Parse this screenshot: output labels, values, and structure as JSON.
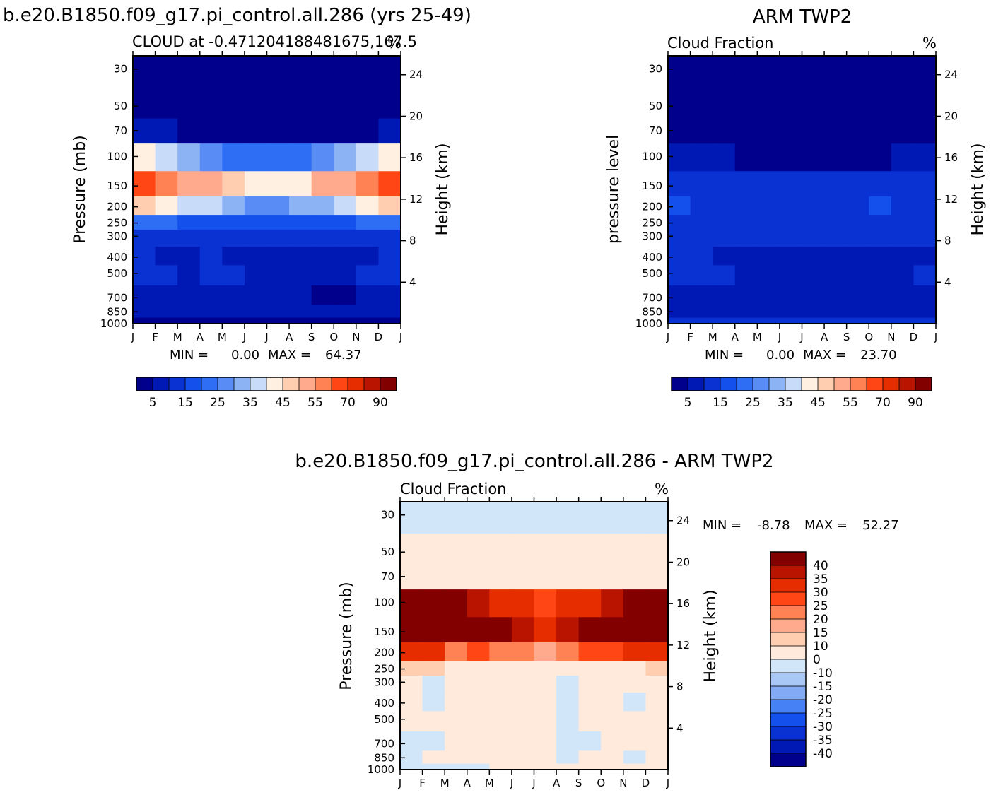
{
  "panel_a": {
    "main_title": "b.e20.B1850.f09_g17.pi_control.all.286 (yrs 25-49)",
    "subtitle": "CLOUD at -0.471204188481675,167.5",
    "units": "%",
    "ylabel": "Pressure (mb)",
    "ylabel_right": "Height (km)",
    "min_label": "MIN =",
    "min_value": "0.00",
    "max_label": "MAX =",
    "max_value": "64.37"
  },
  "panel_b": {
    "main_title": "ARM TWP2",
    "subtitle": "Cloud Fraction",
    "units": "%",
    "ylabel": "pressure level",
    "ylabel_right": "Height (km)",
    "min_label": "MIN =",
    "min_value": "0.00",
    "max_label": "MAX =",
    "max_value": "23.70"
  },
  "panel_c": {
    "main_title": "b.e20.B1850.f09_g17.pi_control.all.286 - ARM TWP2",
    "subtitle": "Cloud Fraction",
    "units": "%",
    "ylabel": "Pressure (mb)",
    "ylabel_right": "Height (km)",
    "min_label": "MIN =",
    "min_value": "-8.78",
    "max_label": "MAX =",
    "max_value": "52.27"
  },
  "colorbar_abs": {
    "colors": [
      "#00008c",
      "#0018b4",
      "#0a32d2",
      "#1450eb",
      "#2d6ef5",
      "#5a8cf5",
      "#8cb4f5",
      "#c8dcfa",
      "#fff0e1",
      "#ffcdaf",
      "#ffaa8c",
      "#ff8255",
      "#ff4614",
      "#e62d00",
      "#b91400",
      "#820000"
    ],
    "labels": [
      "5",
      "15",
      "25",
      "35",
      "45",
      "55",
      "70",
      "90"
    ]
  },
  "colorbar_diff": {
    "colors": [
      "#820000",
      "#b91400",
      "#e62d00",
      "#ff4614",
      "#ff8255",
      "#ffaa8c",
      "#ffcdaf",
      "#ffeadb",
      "#d2e6fa",
      "#aac8f5",
      "#82aaf5",
      "#4682f5",
      "#1450eb",
      "#0a32d2",
      "#0018b4",
      "#00008c"
    ],
    "labels": [
      "40",
      "35",
      "30",
      "25",
      "20",
      "15",
      "10",
      "0",
      "-10",
      "-15",
      "-20",
      "-25",
      "-30",
      "-35",
      "-40"
    ]
  },
  "chart_data": [
    {
      "type": "heatmap",
      "title": "CLOUD at -0.471204188481675,167.5",
      "x": [
        "J",
        "F",
        "M",
        "A",
        "M",
        "J",
        "J",
        "A",
        "S",
        "O",
        "N",
        "D",
        "J"
      ],
      "y_pressure_mb": [
        30,
        50,
        70,
        100,
        150,
        200,
        250,
        300,
        400,
        500,
        700,
        850,
        1000
      ],
      "y_height_km": [
        4,
        8,
        12,
        16,
        20,
        24
      ],
      "months": [
        "J",
        "F",
        "M",
        "A",
        "M",
        "J",
        "J",
        "A",
        "S",
        "O",
        "N",
        "D"
      ],
      "values": {
        "30": [
          2,
          2,
          2,
          2,
          2,
          2,
          2,
          2,
          2,
          2,
          2,
          2
        ],
        "50": [
          2,
          2,
          2,
          2,
          2,
          2,
          2,
          2,
          2,
          2,
          2,
          2
        ],
        "70": [
          6,
          5,
          4,
          3,
          3,
          3,
          3,
          3,
          3,
          3,
          4,
          6
        ],
        "100": [
          40,
          36,
          30,
          26,
          24,
          22,
          22,
          24,
          26,
          30,
          36,
          40
        ],
        "150": [
          62,
          56,
          50,
          54,
          48,
          42,
          40,
          44,
          52,
          54,
          58,
          64
        ],
        "200": [
          46,
          42,
          38,
          36,
          32,
          28,
          26,
          30,
          34,
          38,
          42,
          48
        ],
        "250": [
          22,
          20,
          18,
          17,
          16,
          15,
          15,
          15,
          17,
          18,
          20,
          22
        ],
        "300": [
          14,
          13,
          12,
          12,
          11,
          11,
          11,
          11,
          11,
          12,
          13,
          14
        ],
        "400": [
          10,
          9,
          9,
          10,
          8,
          9,
          7,
          5,
          6,
          7,
          9,
          10
        ],
        "500": [
          12,
          11,
          9,
          10,
          10,
          9,
          8,
          7,
          7,
          8,
          10,
          12
        ],
        "700": [
          8,
          7,
          6,
          6,
          7,
          7,
          6,
          5,
          3,
          4,
          6,
          8
        ],
        "850": [
          7,
          7,
          7,
          6,
          6,
          6,
          6,
          6,
          5,
          6,
          6,
          7
        ],
        "1000": [
          4,
          4,
          4,
          4,
          4,
          4,
          4,
          4,
          4,
          4,
          4,
          4
        ]
      },
      "zmin": 0.0,
      "zmax": 64.37,
      "xlabel": "",
      "ylabel": "Pressure (mb)"
    },
    {
      "type": "heatmap",
      "title": "Cloud Fraction",
      "x": [
        "J",
        "F",
        "M",
        "A",
        "M",
        "J",
        "J",
        "A",
        "S",
        "O",
        "N",
        "D",
        "J"
      ],
      "y_pressure_mb": [
        30,
        50,
        70,
        100,
        150,
        200,
        250,
        300,
        400,
        500,
        700,
        850,
        1000
      ],
      "y_height_km": [
        4,
        8,
        12,
        16,
        20,
        24
      ],
      "months": [
        "J",
        "F",
        "M",
        "A",
        "M",
        "J",
        "J",
        "A",
        "S",
        "O",
        "N",
        "D"
      ],
      "values": {
        "30": [
          1,
          1,
          1,
          1,
          1,
          1,
          1,
          1,
          1,
          1,
          1,
          1
        ],
        "50": [
          1,
          1,
          1,
          1,
          1,
          1,
          1,
          1,
          1,
          1,
          1,
          1
        ],
        "70": [
          2,
          1,
          1,
          1,
          1,
          1,
          1,
          1,
          1,
          1,
          1,
          2
        ],
        "100": [
          7,
          6,
          5,
          3,
          3,
          3,
          3,
          3,
          3,
          4,
          6,
          8
        ],
        "150": [
          12,
          11,
          11,
          10,
          10,
          11,
          11,
          10,
          12,
          12,
          13,
          13
        ],
        "200": [
          15,
          12,
          12,
          13,
          14,
          12,
          13,
          13,
          14,
          15,
          13,
          14
        ],
        "250": [
          14,
          12,
          12,
          13,
          13,
          12,
          13,
          12,
          13,
          14,
          12,
          13
        ],
        "300": [
          12,
          11,
          11,
          11,
          11,
          10,
          11,
          11,
          11,
          12,
          11,
          11
        ],
        "400": [
          10,
          10,
          9,
          8,
          7,
          7,
          8,
          8,
          6,
          6,
          8,
          9
        ],
        "500": [
          11,
          10,
          10,
          9,
          7,
          7,
          7,
          9,
          6,
          6,
          9,
          10
        ],
        "700": [
          9,
          8,
          8,
          7,
          6,
          7,
          6,
          7,
          5,
          5,
          7,
          8
        ],
        "850": [
          7,
          7,
          7,
          7,
          7,
          7,
          7,
          7,
          6,
          6,
          7,
          7
        ],
        "1000": [
          11,
          11,
          11,
          11,
          11,
          11,
          11,
          11,
          11,
          11,
          11,
          11
        ]
      },
      "zmin": 0.0,
      "zmax": 23.7,
      "xlabel": "",
      "ylabel": "pressure level"
    },
    {
      "type": "heatmap",
      "title": "Cloud Fraction",
      "x": [
        "J",
        "F",
        "M",
        "A",
        "M",
        "J",
        "J",
        "A",
        "S",
        "O",
        "N",
        "D",
        "J"
      ],
      "y_pressure_mb": [
        30,
        50,
        70,
        100,
        150,
        200,
        250,
        300,
        400,
        500,
        700,
        850,
        1000
      ],
      "y_height_km": [
        4,
        8,
        12,
        16,
        20,
        24
      ],
      "months": [
        "J",
        "F",
        "M",
        "A",
        "M",
        "J",
        "J",
        "A",
        "S",
        "O",
        "N",
        "D"
      ],
      "values": {
        "30": [
          -5,
          -5,
          -5,
          -5,
          -5,
          -5,
          -5,
          -5,
          -5,
          -5,
          -5,
          -5
        ],
        "50": [
          3,
          3,
          3,
          3,
          3,
          3,
          3,
          3,
          3,
          3,
          3,
          3
        ],
        "70": [
          6,
          5,
          5,
          4,
          4,
          3,
          3,
          3,
          3,
          4,
          5,
          6
        ],
        "100": [
          45,
          44,
          40,
          38,
          34,
          30,
          28,
          30,
          34,
          38,
          44,
          46
        ],
        "150": [
          50,
          46,
          42,
          44,
          40,
          36,
          34,
          38,
          42,
          44,
          46,
          50
        ],
        "200": [
          32,
          30,
          24,
          26,
          22,
          20,
          18,
          22,
          26,
          28,
          30,
          34
        ],
        "250": [
          10,
          10,
          8,
          8,
          8,
          7,
          7,
          7,
          8,
          8,
          9,
          10
        ],
        "300": [
          5,
          -3,
          4,
          4,
          3,
          3,
          3,
          -3,
          3,
          3,
          4,
          5
        ],
        "400": [
          4,
          -3,
          3,
          3,
          3,
          3,
          3,
          -3,
          3,
          3,
          -3,
          4
        ],
        "500": [
          3,
          3,
          3,
          3,
          3,
          3,
          3,
          -3,
          3,
          3,
          3,
          3
        ],
        "700": [
          -3,
          -3,
          3,
          3,
          3,
          3,
          3,
          -3,
          -3,
          3,
          3,
          3
        ],
        "850": [
          -3,
          3,
          3,
          3,
          3,
          3,
          3,
          -3,
          3,
          3,
          -3,
          3
        ],
        "1000": [
          -3,
          -3,
          -3,
          -3,
          3,
          3,
          3,
          3,
          3,
          3,
          3,
          3
        ]
      },
      "zmin": -8.78,
      "zmax": 52.27,
      "xlabel": "",
      "ylabel": "Pressure (mb)"
    }
  ]
}
